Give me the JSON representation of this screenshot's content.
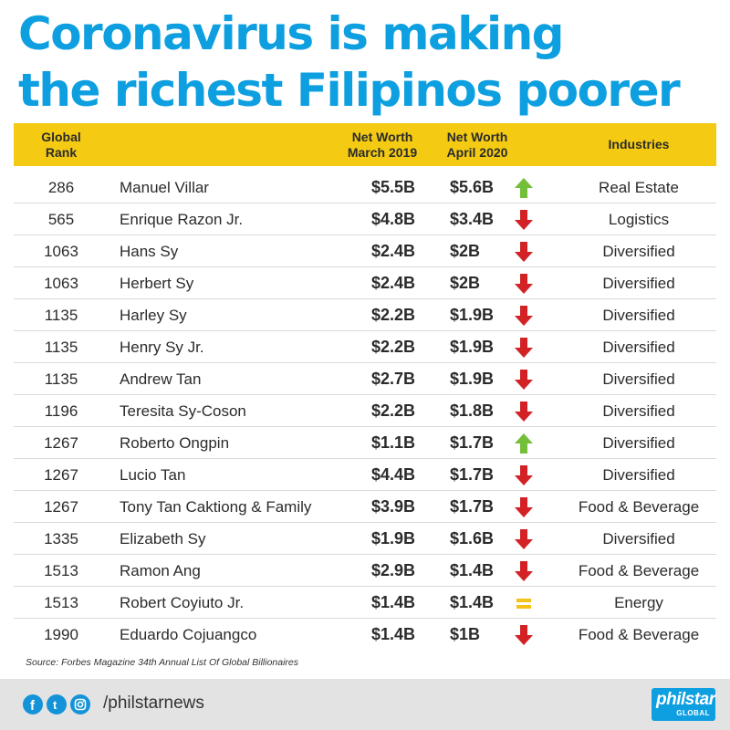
{
  "title": {
    "line1": "Coronavirus is making",
    "line2": "the richest Filipinos poorer"
  },
  "colors": {
    "title": "#0d9fe0",
    "header_band": "#f4cb12",
    "up": "#73bf3a",
    "down": "#d32226",
    "same": "#f4c21a"
  },
  "chart_data": {
    "type": "table",
    "columns": [
      "Global Rank",
      "",
      "Net Worth March 2019",
      "Net Worth April 2020",
      "",
      "Industries"
    ],
    "rows": [
      {
        "rank": "286",
        "name": "Manuel Villar",
        "worth_2019": "$5.5B",
        "worth_2020": "$5.6B",
        "trend": "up",
        "industry": "Real Estate"
      },
      {
        "rank": "565",
        "name": "Enrique Razon Jr.",
        "worth_2019": "$4.8B",
        "worth_2020": "$3.4B",
        "trend": "down",
        "industry": "Logistics"
      },
      {
        "rank": "1063",
        "name": "Hans Sy",
        "worth_2019": "$2.4B",
        "worth_2020": "$2B",
        "trend": "down",
        "industry": "Diversified"
      },
      {
        "rank": "1063",
        "name": "Herbert Sy",
        "worth_2019": "$2.4B",
        "worth_2020": "$2B",
        "trend": "down",
        "industry": "Diversified"
      },
      {
        "rank": "1135",
        "name": "Harley Sy",
        "worth_2019": "$2.2B",
        "worth_2020": "$1.9B",
        "trend": "down",
        "industry": "Diversified"
      },
      {
        "rank": "1135",
        "name": "Henry Sy Jr.",
        "worth_2019": "$2.2B",
        "worth_2020": "$1.9B",
        "trend": "down",
        "industry": "Diversified"
      },
      {
        "rank": "1135",
        "name": "Andrew Tan",
        "worth_2019": "$2.7B",
        "worth_2020": "$1.9B",
        "trend": "down",
        "industry": "Diversified"
      },
      {
        "rank": "1196",
        "name": "Teresita Sy-Coson",
        "worth_2019": "$2.2B",
        "worth_2020": "$1.8B",
        "trend": "down",
        "industry": "Diversified"
      },
      {
        "rank": "1267",
        "name": "Roberto Ongpin",
        "worth_2019": "$1.1B",
        "worth_2020": "$1.7B",
        "trend": "up",
        "industry": "Diversified"
      },
      {
        "rank": "1267",
        "name": "Lucio Tan",
        "worth_2019": "$4.4B",
        "worth_2020": "$1.7B",
        "trend": "down",
        "industry": "Diversified"
      },
      {
        "rank": "1267",
        "name": "Tony Tan Caktiong & Family",
        "worth_2019": "$3.9B",
        "worth_2020": "$1.7B",
        "trend": "down",
        "industry": "Food & Beverage"
      },
      {
        "rank": "1335",
        "name": "Elizabeth Sy",
        "worth_2019": "$1.9B",
        "worth_2020": "$1.6B",
        "trend": "down",
        "industry": "Diversified"
      },
      {
        "rank": "1513",
        "name": "Ramon Ang",
        "worth_2019": "$2.9B",
        "worth_2020": "$1.4B",
        "trend": "down",
        "industry": "Food & Beverage"
      },
      {
        "rank": "1513",
        "name": "Robert Coyiuto Jr.",
        "worth_2019": "$1.4B",
        "worth_2020": "$1.4B",
        "trend": "same",
        "industry": "Energy"
      },
      {
        "rank": "1990",
        "name": "Eduardo Cojuangco",
        "worth_2019": "$1.4B",
        "worth_2020": "$1B",
        "trend": "down",
        "industry": "Food & Beverage"
      }
    ]
  },
  "header": {
    "rank_line1": "Global",
    "rank_line2": "Rank",
    "w19_line1": "Net Worth",
    "w19_line2": "March 2019",
    "w20_line1": "Net Worth",
    "w20_line2": "April 2020",
    "industries": "Industries"
  },
  "source": "Source: Forbes Magazine 34th Annual List Of Global Billionaires",
  "footer": {
    "handle": "/philstarnews",
    "brand_main": "philstar",
    "brand_sub": "GLOBAL",
    "icons": [
      "facebook-icon",
      "twitter-icon",
      "instagram-icon"
    ]
  }
}
